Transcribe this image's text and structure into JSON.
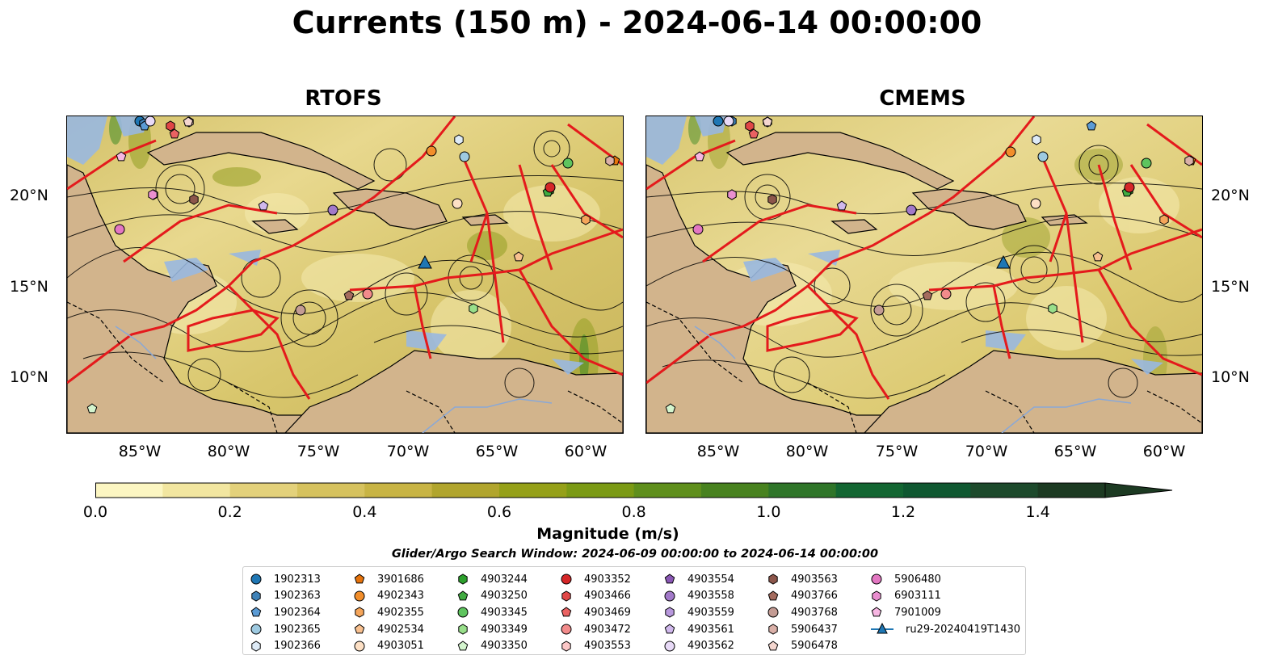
{
  "title": "Currents (150 m) - 2024-06-14 00:00:00",
  "panels": [
    {
      "title": "RTOFS"
    },
    {
      "title": "CMEMS"
    }
  ],
  "axes": {
    "lon_labels": [
      "85°W",
      "80°W",
      "75°W",
      "70°W",
      "65°W",
      "60°W"
    ],
    "lat_labels": [
      "20°N",
      "15°N",
      "10°N"
    ]
  },
  "colorbar": {
    "label": "Magnitude (m/s)",
    "ticks": [
      "0.0",
      "0.2",
      "0.4",
      "0.6",
      "0.8",
      "1.0",
      "1.2",
      "1.4"
    ],
    "range": [
      0.0,
      1.5
    ],
    "extend": "max",
    "colors": [
      "#fcf6c2",
      "#f2e6a0",
      "#e3d17b",
      "#d6c25e",
      "#c8b444",
      "#b1a52d",
      "#95a018",
      "#7b9a14",
      "#5f8f1c",
      "#48821f",
      "#2f7529",
      "#136632",
      "#0f5831",
      "#1d4a2c",
      "#1c3a22"
    ]
  },
  "search_window": "Glider/Argo Search Window: 2024-06-09 00:00:00 to 2024-06-14 00:00:00",
  "legend": [
    {
      "label": "1902313",
      "shape": "circle",
      "color": "#1f77b4"
    },
    {
      "label": "1902363",
      "shape": "hexagon",
      "color": "#3f82b8"
    },
    {
      "label": "1902364",
      "shape": "pentagon",
      "color": "#5b9bd5"
    },
    {
      "label": "1902365",
      "shape": "circle",
      "color": "#9ecae1"
    },
    {
      "label": "1902366",
      "shape": "hexagon",
      "color": "#deebf7"
    },
    {
      "label": "3901686",
      "shape": "pentagon",
      "color": "#e6730b"
    },
    {
      "label": "4902343",
      "shape": "circle",
      "color": "#f28e2b"
    },
    {
      "label": "4902355",
      "shape": "hexagon",
      "color": "#f5a55a"
    },
    {
      "label": "4902534",
      "shape": "pentagon",
      "color": "#f8c08f"
    },
    {
      "label": "4903051",
      "shape": "circle",
      "color": "#fde0c5"
    },
    {
      "label": "4903244",
      "shape": "hexagon",
      "color": "#2ca02c"
    },
    {
      "label": "4903250",
      "shape": "pentagon",
      "color": "#41ab41"
    },
    {
      "label": "4903345",
      "shape": "circle",
      "color": "#5ec45e"
    },
    {
      "label": "4903349",
      "shape": "hexagon",
      "color": "#98df8a"
    },
    {
      "label": "4903350",
      "shape": "pentagon",
      "color": "#d4f5ce"
    },
    {
      "label": "4903352",
      "shape": "circle",
      "color": "#d62728"
    },
    {
      "label": "4903466",
      "shape": "hexagon",
      "color": "#e04646"
    },
    {
      "label": "4903469",
      "shape": "pentagon",
      "color": "#ea6262"
    },
    {
      "label": "4903472",
      "shape": "circle",
      "color": "#f28b8b"
    },
    {
      "label": "4903553",
      "shape": "hexagon",
      "color": "#fbc7c7"
    },
    {
      "label": "4903554",
      "shape": "pentagon",
      "color": "#8a57b5"
    },
    {
      "label": "4903558",
      "shape": "circle",
      "color": "#a279c9"
    },
    {
      "label": "4903559",
      "shape": "hexagon",
      "color": "#b898dd"
    },
    {
      "label": "4903561",
      "shape": "pentagon",
      "color": "#d0b8ec"
    },
    {
      "label": "4903562",
      "shape": "circle",
      "color": "#e8daf7"
    },
    {
      "label": "4903563",
      "shape": "hexagon",
      "color": "#8c564b"
    },
    {
      "label": "4903766",
      "shape": "pentagon",
      "color": "#a46b5e"
    },
    {
      "label": "4903768",
      "shape": "circle",
      "color": "#c49c94"
    },
    {
      "label": "5906437",
      "shape": "hexagon",
      "color": "#dab0a8"
    },
    {
      "label": "5906478",
      "shape": "pentagon",
      "color": "#f4d6cf"
    },
    {
      "label": "5906480",
      "shape": "circle",
      "color": "#e377c2"
    },
    {
      "label": "6903111",
      "shape": "hexagon",
      "color": "#ea8fd0"
    },
    {
      "label": "7901009",
      "shape": "pentagon",
      "color": "#f7b6e2"
    },
    {
      "label": "ru29-20240419T1430",
      "shape": "triangle-line",
      "color": "#1f77b4"
    }
  ]
}
